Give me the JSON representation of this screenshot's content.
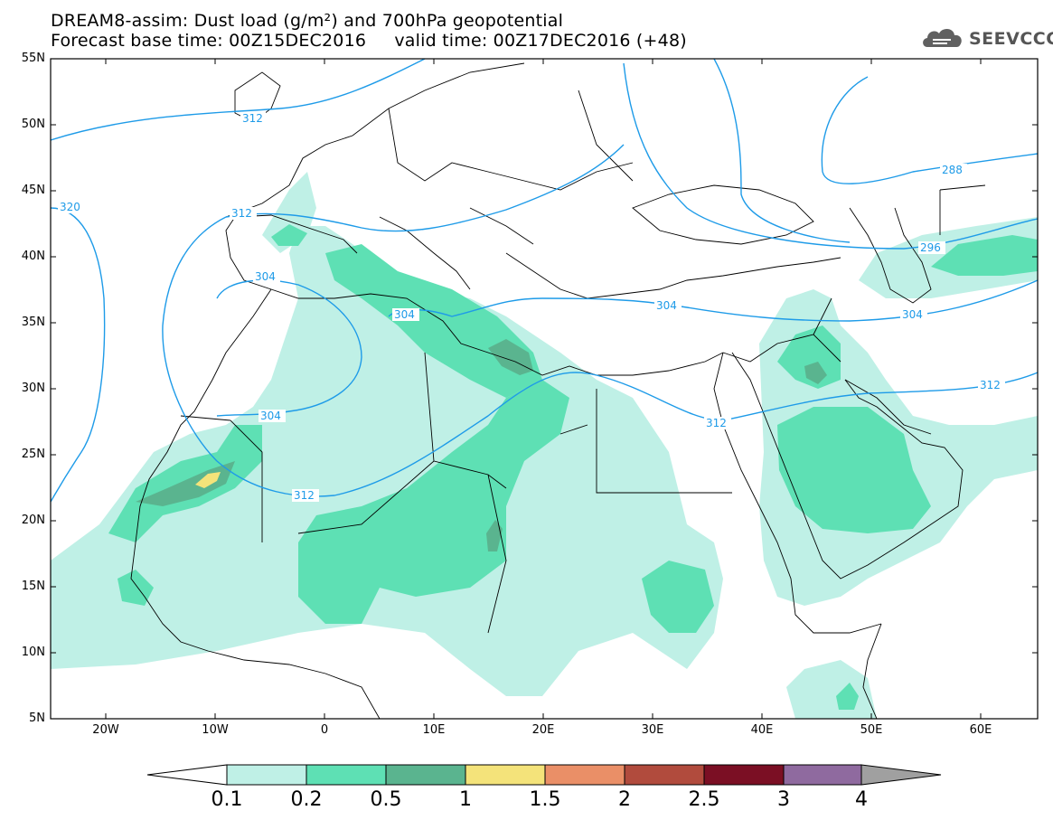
{
  "header": {
    "line1": "DREAM8-assim: Dust load (g/m²) and 700hPa geopotential",
    "line2": "Forecast base time: 00Z15DEC2016     valid time: 00Z17DEC2016 (+48)"
  },
  "logo": {
    "text": "SEEVCCC",
    "icon": "cloud-icon"
  },
  "map": {
    "lat_labels": [
      "55N",
      "50N",
      "45N",
      "40N",
      "35N",
      "30N",
      "25N",
      "20N",
      "15N",
      "10N",
      "5N"
    ],
    "lon_labels": [
      "20W",
      "10W",
      "0",
      "10E",
      "20E",
      "30E",
      "40E",
      "50E",
      "60E"
    ],
    "contour_labels": [
      "312",
      "320",
      "312",
      "304",
      "304",
      "304",
      "312",
      "288",
      "296",
      "304",
      "304",
      "312",
      "312"
    ]
  },
  "colorbar": {
    "labels": [
      "0.1",
      "0.2",
      "0.5",
      "1",
      "1.5",
      "2",
      "2.5",
      "3",
      "4"
    ],
    "colors": [
      "#ffffff",
      "#bff0e6",
      "#5ee0b4",
      "#5ab48f",
      "#f4e37a",
      "#ea8f67",
      "#b14b3d",
      "#7b0f24",
      "#8f6a9f",
      "#a0a0a0"
    ]
  },
  "colors": {
    "contour": "#1e9be8",
    "dust_low": "#bff0e6",
    "dust_mid": "#5ee0b4",
    "dust_high": "#5ab48f",
    "dust_peak": "#f4e37a"
  }
}
